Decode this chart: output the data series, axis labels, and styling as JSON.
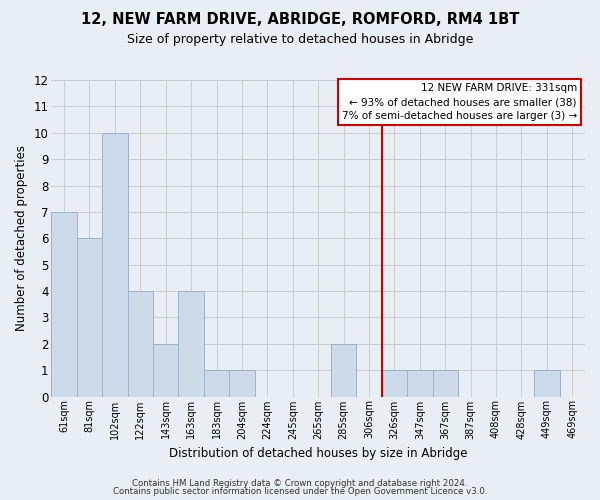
{
  "title": "12, NEW FARM DRIVE, ABRIDGE, ROMFORD, RM4 1BT",
  "subtitle": "Size of property relative to detached houses in Abridge",
  "xlabel": "Distribution of detached houses by size in Abridge",
  "ylabel": "Number of detached properties",
  "bar_labels": [
    "61sqm",
    "81sqm",
    "102sqm",
    "122sqm",
    "143sqm",
    "163sqm",
    "183sqm",
    "204sqm",
    "224sqm",
    "245sqm",
    "265sqm",
    "285sqm",
    "306sqm",
    "326sqm",
    "347sqm",
    "367sqm",
    "387sqm",
    "408sqm",
    "428sqm",
    "449sqm",
    "469sqm"
  ],
  "bar_values": [
    7,
    6,
    10,
    4,
    2,
    4,
    1,
    1,
    0,
    0,
    0,
    2,
    0,
    1,
    1,
    1,
    0,
    0,
    0,
    1,
    0
  ],
  "bar_color": "#ccdaea",
  "bar_edge_color": "#9ab4cc",
  "highlight_fill_color": "#d5e5f5",
  "vline_color": "#cc0000",
  "vline_x_index": 13,
  "ylim_max": 12,
  "annotation_title": "12 NEW FARM DRIVE: 331sqm",
  "annotation_line1": "← 93% of detached houses are smaller (38)",
  "annotation_line2": "7% of semi-detached houses are larger (3) →",
  "annotation_box_facecolor": "#ffffff",
  "annotation_box_edgecolor": "#cc0000",
  "footer1": "Contains HM Land Registry data © Crown copyright and database right 2024.",
  "footer2": "Contains public sector information licensed under the Open Government Licence v3.0.",
  "grid_color": "#cccccc",
  "bg_color": "#e8eef4",
  "plot_bg_color": "#e8eef4"
}
